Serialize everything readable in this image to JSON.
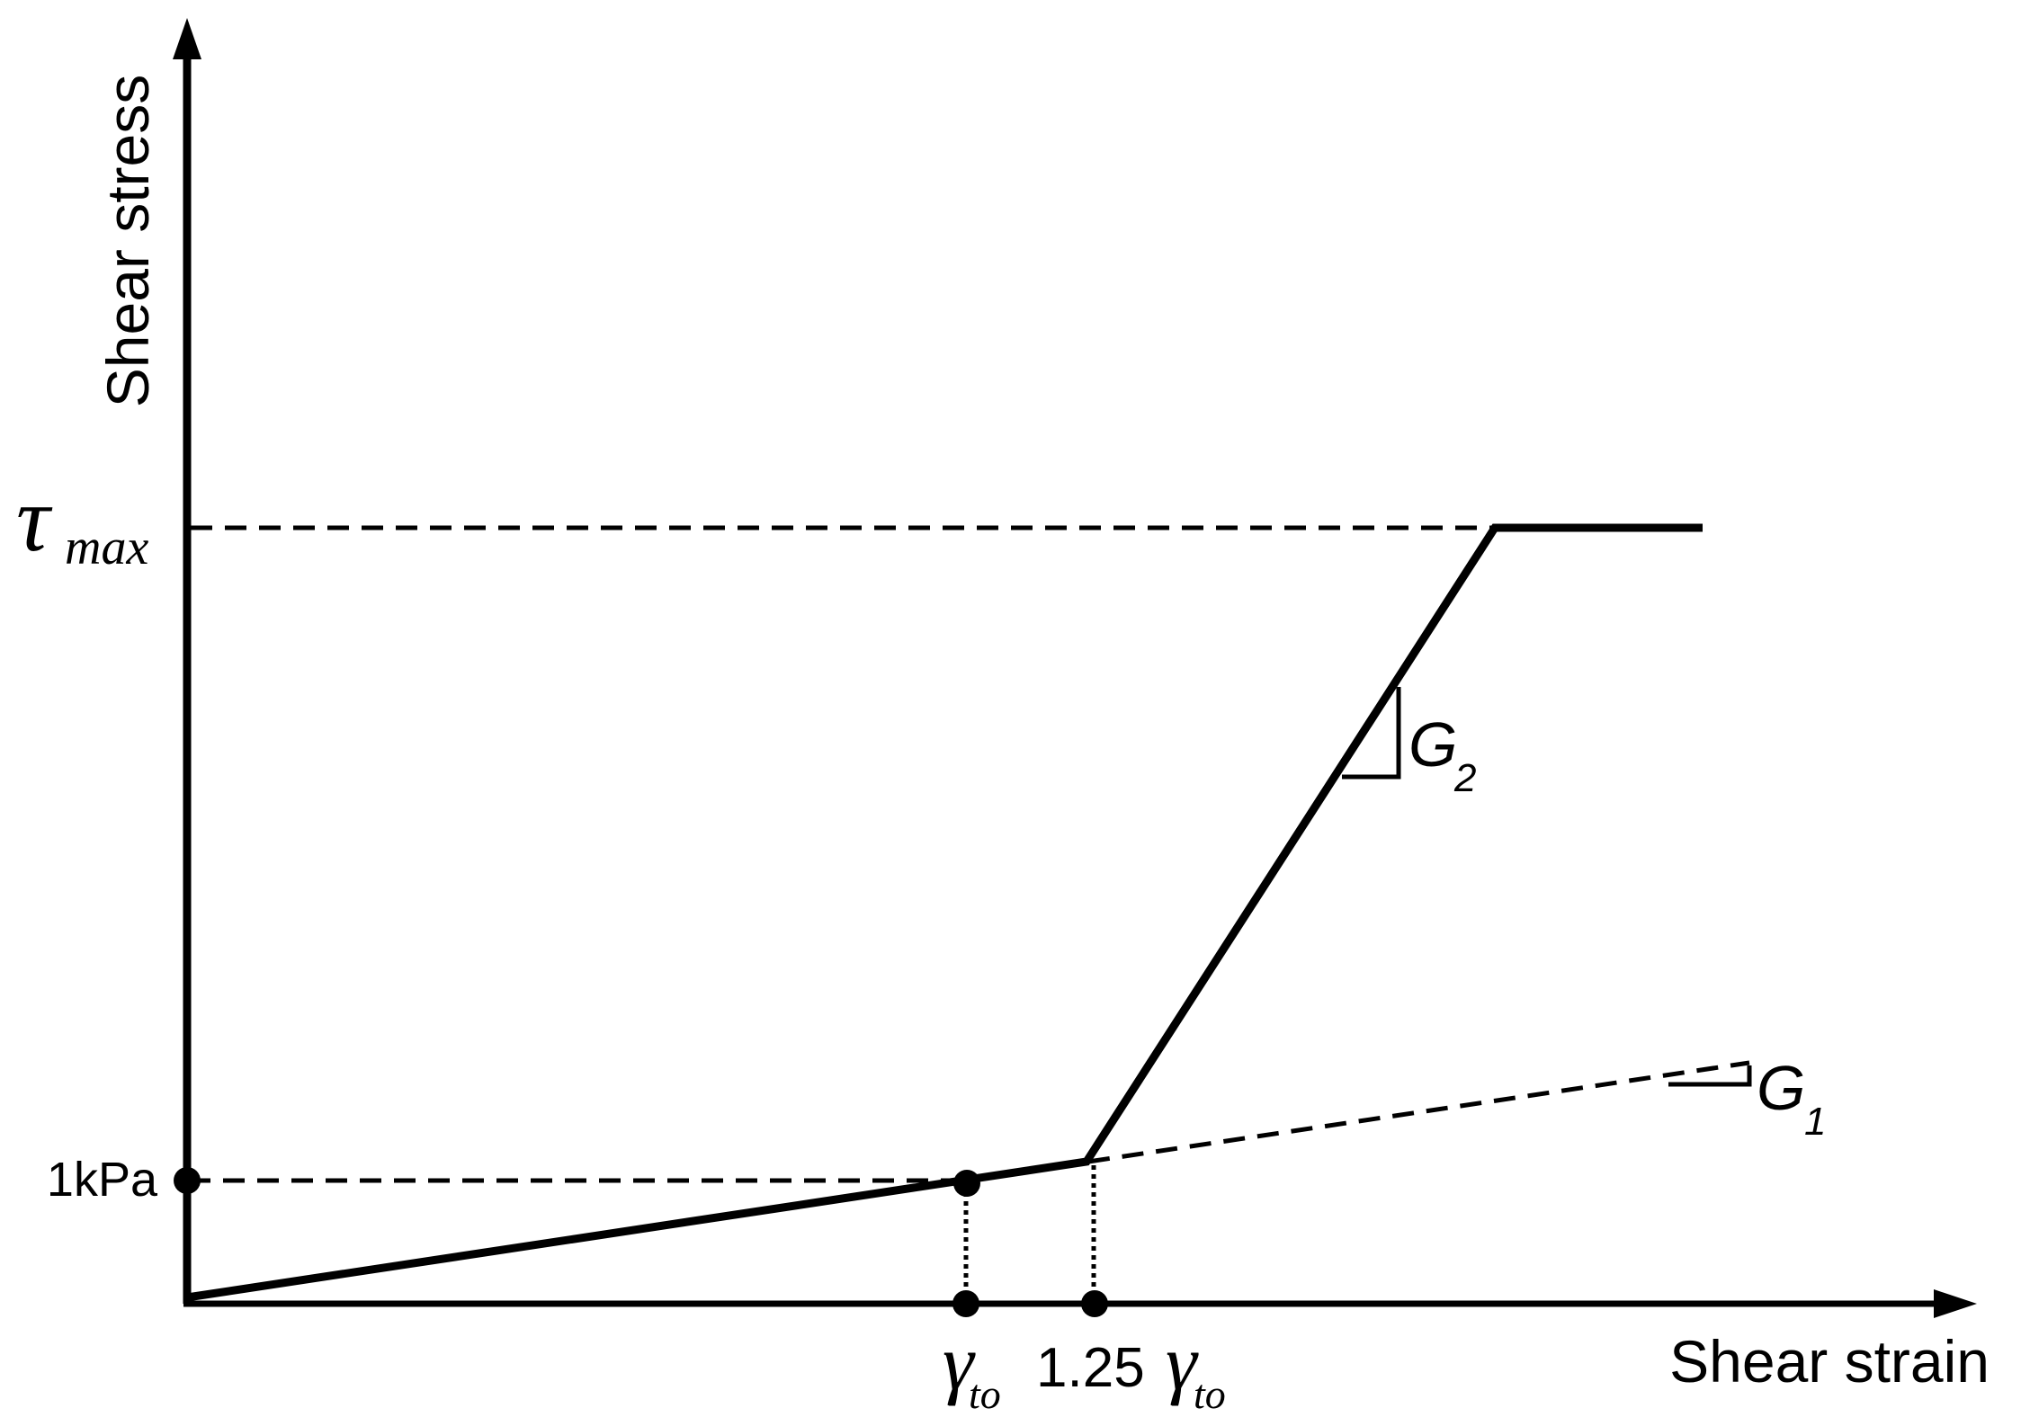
{
  "axes": {
    "x_label": "Shear strain",
    "y_label": "Shear stress"
  },
  "y_markers": {
    "tau_symbol": "τ",
    "tau_subscript": "max",
    "kpa_label": "1kPa"
  },
  "x_markers": {
    "gamma_symbol": "γ",
    "gamma_subscript": "to",
    "coefficient": "1.25"
  },
  "slopes": {
    "g1_letter": "G",
    "g1_index": "1",
    "g2_letter": "G",
    "g2_index": "2"
  },
  "colors": {
    "stroke": "#000000",
    "background": "#ffffff"
  }
}
